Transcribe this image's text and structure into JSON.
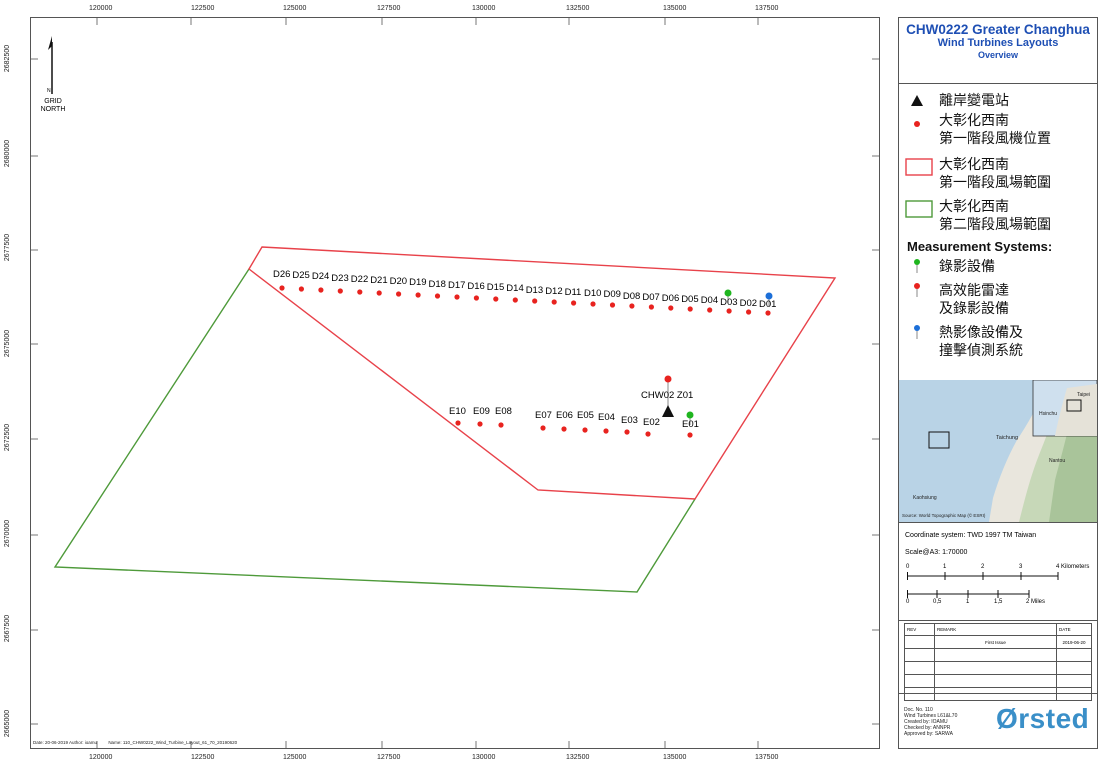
{
  "axes": {
    "x_ticks": [
      "120000",
      "122500",
      "125000",
      "127500",
      "130000",
      "132500",
      "135000",
      "137500"
    ],
    "y_ticks": [
      "2682500",
      "2680000",
      "2677500",
      "2675000",
      "2672500",
      "2670000",
      "2667500",
      "2665000"
    ]
  },
  "north_arrow": {
    "letter": "N",
    "line1": "GRID",
    "line2": "NORTH"
  },
  "footer": {
    "date_author": "Date: 20-06-2019  Author: ioamu",
    "name": "Name: 110_CHW0222_Wind_Turbine_Layout_61_70_20190620"
  },
  "title": {
    "line1": "CHW0222 Greater Changhua",
    "line2": "Wind Turbines Layouts",
    "line3": "Overview"
  },
  "legend": {
    "substation": "離岸變電站",
    "turbines_l1": "大彰化西南",
    "turbines_l2": "第一階段風機位置",
    "phase1_l1": "大彰化西南",
    "phase1_l2": "第一階段風場範圍",
    "phase2_l1": "大彰化西南",
    "phase2_l2": "第二階段風場範圍",
    "measurement_heading": "Measurement Systems:",
    "video": "錄影設備",
    "radar_l1": "高效能雷達",
    "radar_l2": "及錄影設備",
    "thermal_l1": "熱影像設備及",
    "thermal_l2": "撞擊偵測系統",
    "colors": {
      "red": "#e8231f",
      "green": "#1fb51f",
      "blue": "#1c6fd8",
      "phase1_line": "#e8424a",
      "phase2_line": "#4e9a3a"
    }
  },
  "map": {
    "d_labels": [
      "D26",
      "D25",
      "D24",
      "D23",
      "D22",
      "D21",
      "D20",
      "D19",
      "D18",
      "D17",
      "D16",
      "D15",
      "D14",
      "D13",
      "D12",
      "D11",
      "D10",
      "D09",
      "D08",
      "D07",
      "D06",
      "D05",
      "D04",
      "D03",
      "D02",
      "D01"
    ],
    "e_labels": [
      "E10",
      "E09",
      "E08",
      "E07",
      "E06",
      "E05",
      "E04",
      "E03",
      "E02",
      "E01"
    ],
    "substation_label": "CHW02 Z01"
  },
  "inset_map": {
    "labels": [
      "Taichung",
      "Taipei",
      "Hsinchu",
      "Nantou",
      "Kaohsiung"
    ],
    "source": "Source: World Topographic Map (© ESRI)"
  },
  "coordinate": {
    "system": "Coordinate system: TWD 1997 TM Taiwan",
    "scale": "Scale@A3:   1:70000",
    "km_ticks": [
      "0",
      "1",
      "2",
      "3",
      "4 Kilometers"
    ],
    "mi_ticks": [
      "0",
      "0,5",
      "1",
      "1,5",
      "2 Miles"
    ]
  },
  "revision": {
    "headers": [
      "REV",
      "REMARK",
      "DATE"
    ],
    "rows": [
      [
        "",
        "First Issue",
        "2019-06-20"
      ],
      [
        "",
        "",
        ""
      ],
      [
        "",
        "",
        ""
      ],
      [
        "",
        "",
        ""
      ],
      [
        "",
        "",
        ""
      ]
    ]
  },
  "doc_info": {
    "l1": "Doc. No. 110",
    "l2": "Wind Turbines L61&L70",
    "l3": "Created by: IOAMU",
    "l4": "Checked by: ANNPR",
    "l5": "Approved by: SARWA",
    "logo": "Ørsted"
  }
}
